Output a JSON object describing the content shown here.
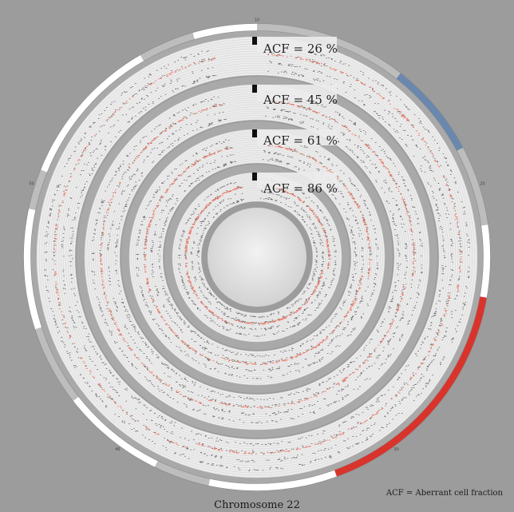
{
  "title": "Chromosome 22",
  "footnote": "ACF = Aberrant cell fraction",
  "colors": {
    "background": "#9c9c9c",
    "track": "#ececec",
    "track_line": "#d2d2d2",
    "separator": "#a9a9a9",
    "points_black": "#111111",
    "points_red": "#f0705a",
    "band_blue": "#6a88ad",
    "band_red": "#d8342c",
    "band_white": "#ffffff",
    "band_grey": "#bdbdbd"
  },
  "rings": [
    {
      "label": "ACF = 26 %",
      "acf": 26
    },
    {
      "label": "ACF = 45 %",
      "acf": 45
    },
    {
      "label": "ACF = 61 %",
      "acf": 61
    },
    {
      "label": "ACF = 86 %",
      "acf": 86
    }
  ],
  "ideogram_tick_labels": [
    "10",
    "20",
    "30",
    "40",
    "50"
  ]
}
